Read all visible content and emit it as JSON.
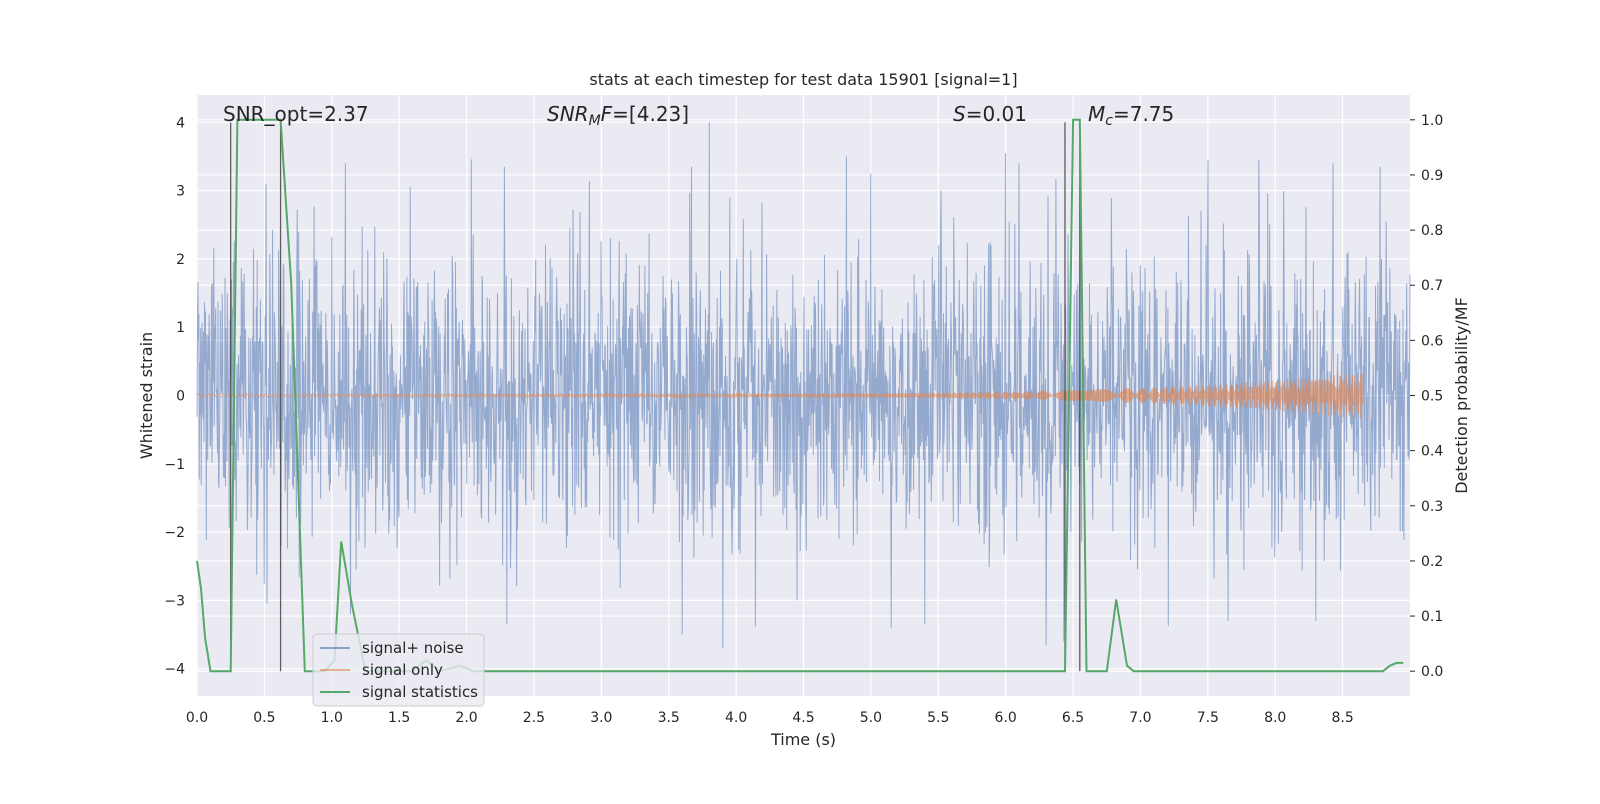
{
  "chart_data": {
    "type": "line",
    "title": "stats at each timestep for test data 15901 [signal=1]",
    "xlabel": "Time (s)",
    "ylabel_left": "Whitened strain",
    "ylabel_right": "Detection probability/MF",
    "xlim": [
      0.0,
      9.0
    ],
    "ylim_left": [
      -4.4,
      4.4
    ],
    "ylim_right": [
      -0.045,
      1.045
    ],
    "x_ticks": [
      "0.0",
      "0.5",
      "1.0",
      "1.5",
      "2.0",
      "2.5",
      "3.0",
      "3.5",
      "4.0",
      "4.5",
      "5.0",
      "5.5",
      "6.0",
      "6.5",
      "7.0",
      "7.5",
      "8.0",
      "8.5"
    ],
    "y_ticks_left": [
      "4",
      "3",
      "2",
      "1",
      "0",
      "−1",
      "−2",
      "−3",
      "−4"
    ],
    "y_ticks_right": [
      "1.0",
      "0.9",
      "0.8",
      "0.7",
      "0.6",
      "0.5",
      "0.4",
      "0.3",
      "0.2",
      "0.1",
      "0.0"
    ],
    "grid": true,
    "annotations": {
      "snr_opt": "SNR_opt=2.37",
      "snr_mf_label": "SNR",
      "snr_mf_sub": "M",
      "snr_mf_tail": "F",
      "snr_mf_value": "=[4.23]",
      "s_label": "S",
      "s_value": "=0.01",
      "mc_label": "M",
      "mc_sub": "c",
      "mc_value": "=7.75"
    },
    "vertical_markers": [
      0.25,
      0.62,
      6.44,
      6.55
    ],
    "series": [
      {
        "name": "signal+ noise",
        "color": "#4c72b0",
        "axis": "left",
        "description": "whitened noisy strain, approx. Gaussian with std ~1.0",
        "x_range": [
          0.0,
          9.0
        ],
        "std": 1.0,
        "peaks": [
          {
            "x": 3.8,
            "y": 4.0
          },
          {
            "x": 3.67,
            "y": 3.35
          },
          {
            "x": 1.1,
            "y": 3.4
          },
          {
            "x": 6.0,
            "y": 3.55
          },
          {
            "x": 6.1,
            "y": 3.4
          },
          {
            "x": 7.5,
            "y": 3.45
          },
          {
            "x": 7.88,
            "y": 3.45
          },
          {
            "x": 8.43,
            "y": 3.4
          },
          {
            "x": 8.78,
            "y": 3.35
          },
          {
            "x": 2.28,
            "y": 3.35
          },
          {
            "x": 5.0,
            "y": 3.25
          },
          {
            "x": 1.14,
            "y": -3.2
          },
          {
            "x": 3.9,
            "y": -3.7
          },
          {
            "x": 2.3,
            "y": -3.35
          },
          {
            "x": 3.6,
            "y": -3.5
          },
          {
            "x": 6.3,
            "y": -3.65
          },
          {
            "x": 6.43,
            "y": -3.6
          },
          {
            "x": 5.15,
            "y": -3.4
          },
          {
            "x": 5.4,
            "y": -3.35
          },
          {
            "x": 0.52,
            "y": -3.05
          },
          {
            "x": 7.65,
            "y": -3.3
          },
          {
            "x": 8.3,
            "y": -3.3
          },
          {
            "x": 4.45,
            "y": -3.0
          }
        ]
      },
      {
        "name": "signal only",
        "color": "#dd8452",
        "axis": "left",
        "description": "chirp template growing toward merger",
        "x_range": [
          0.0,
          8.65
        ],
        "amplitude_start": 0.02,
        "amplitude_end": 0.35
      },
      {
        "name": "signal statistics",
        "color": "#55a868",
        "axis": "right",
        "x": [
          0.0,
          0.03,
          0.06,
          0.1,
          0.2,
          0.25,
          0.3,
          0.6,
          0.62,
          0.7,
          0.8,
          0.95,
          1.02,
          1.07,
          1.15,
          1.25,
          1.45,
          1.6,
          1.7,
          1.8,
          1.95,
          2.05,
          2.2,
          6.4,
          6.44,
          6.5,
          6.55,
          6.6,
          6.75,
          6.82,
          6.9,
          6.95,
          7.1,
          8.0,
          8.8,
          8.85,
          8.9,
          8.95
        ],
        "y": [
          0.2,
          0.15,
          0.06,
          0.0,
          0.0,
          0.0,
          1.0,
          1.0,
          1.0,
          0.7,
          0.0,
          0.0,
          0.02,
          0.235,
          0.12,
          0.0,
          0.0,
          0.0,
          0.02,
          0.0,
          0.01,
          0.0,
          0.0,
          0.0,
          0.0,
          1.0,
          1.0,
          0.0,
          0.0,
          0.13,
          0.01,
          0.0,
          0.0,
          0.0,
          0.0,
          0.01,
          0.015,
          0.015
        ]
      }
    ],
    "legend": {
      "position": "lower-left",
      "entries": [
        "signal+ noise",
        "signal only",
        "signal statistics"
      ]
    }
  }
}
